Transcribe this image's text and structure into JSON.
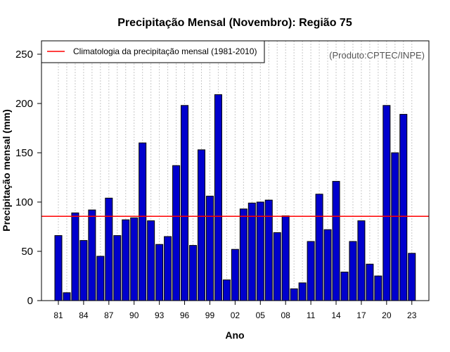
{
  "chart_data": {
    "type": "bar",
    "title": "Precipitação Mensal (Novembro): Região 75",
    "xlabel": "Ano",
    "ylabel": "Precipitação mensal (mm)",
    "ylim": [
      0,
      260
    ],
    "yticks": [
      0,
      50,
      100,
      150,
      200,
      250
    ],
    "xtick_labels": [
      "81",
      "84",
      "87",
      "90",
      "93",
      "96",
      "99",
      "02",
      "05",
      "08",
      "11",
      "14",
      "17",
      "20",
      "23"
    ],
    "xtick_every": 3,
    "categories": [
      "1981",
      "1982",
      "1983",
      "1984",
      "1985",
      "1986",
      "1987",
      "1988",
      "1989",
      "1990",
      "1991",
      "1992",
      "1993",
      "1994",
      "1995",
      "1996",
      "1997",
      "1998",
      "1999",
      "2000",
      "2001",
      "2002",
      "2003",
      "2004",
      "2005",
      "2006",
      "2007",
      "2008",
      "2009",
      "2010",
      "2011",
      "2012",
      "2013",
      "2014",
      "2015",
      "2016",
      "2017",
      "2018",
      "2019",
      "2020",
      "2021",
      "2022",
      "2023"
    ],
    "values": [
      66,
      8,
      89,
      61,
      92,
      45,
      104,
      66,
      82,
      84,
      160,
      81,
      57,
      65,
      137,
      198,
      56,
      153,
      106,
      209,
      21,
      52,
      93,
      99,
      100,
      102,
      69,
      86,
      12,
      18,
      60,
      108,
      72,
      121,
      29,
      60,
      81,
      37,
      25,
      198,
      150,
      189,
      48
    ],
    "bar_color": "#0000CD",
    "bar_edge_color": "#000000",
    "reference_line": {
      "value": 85.5,
      "color": "#FF0000",
      "label": "Climatologia da precipitação mensal (1981-2010)"
    },
    "legend_position": "top-left",
    "grid": "vertical-dotted",
    "source_note": "(Produto:CPTEC/INPE)"
  }
}
